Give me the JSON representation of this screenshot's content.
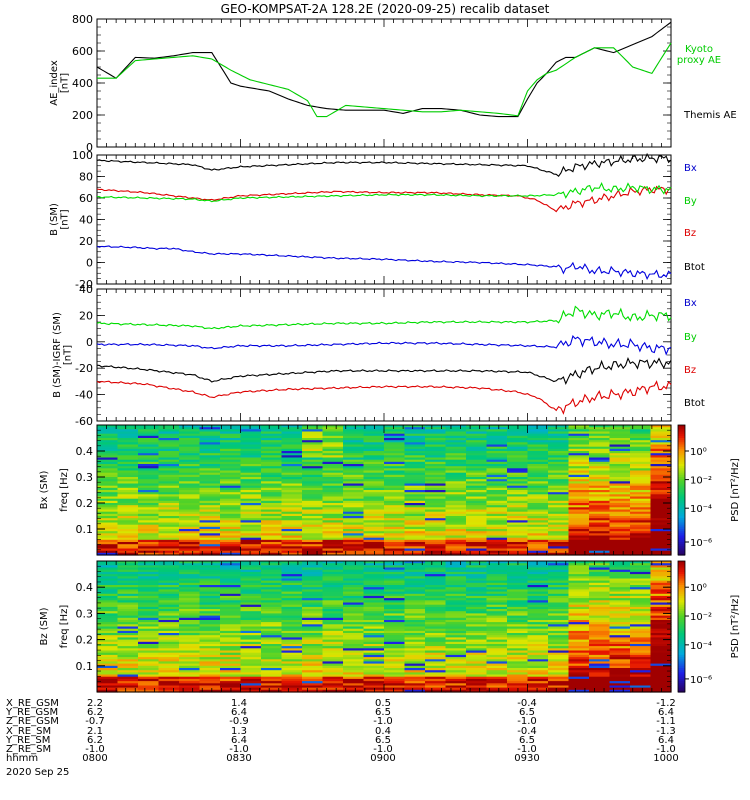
{
  "title": "GEO-KOMPSAT-2A 128.2E (2020-09-25) recalib dataset",
  "date_footer": "2020 Sep 25",
  "colors": {
    "black": "#000000",
    "green": "#00dd00",
    "red": "#dd0000",
    "blue": "#0000dd",
    "kyoto": "#00cc00"
  },
  "panels": {
    "ae": {
      "ylabel": "AE_index\n[nT]",
      "legend": [
        {
          "label": "Kyoto\nproxy AE",
          "color": "#00cc00"
        },
        {
          "label": "Themis AE",
          "color": "#000000"
        }
      ]
    },
    "bsm": {
      "ylabel": "B (SM)\n[nT]",
      "legend": [
        {
          "label": "Bx",
          "color": "#0000cc"
        },
        {
          "label": "By",
          "color": "#00cc00"
        },
        {
          "label": "Bz",
          "color": "#dd0000"
        },
        {
          "label": "Btot",
          "color": "#000000"
        }
      ]
    },
    "bigrf": {
      "ylabel": "B (SM)-IGRF (SM)\n[nT]",
      "legend": [
        {
          "label": "Bx",
          "color": "#0000cc"
        },
        {
          "label": "By",
          "color": "#00cc00"
        },
        {
          "label": "Bz",
          "color": "#dd0000"
        },
        {
          "label": "Btot",
          "color": "#000000"
        }
      ]
    },
    "spec_bx": {
      "ylabel1": "Bx (SM)",
      "ylabel2": "freq [Hz]",
      "cbar_label": "PSD [nT²/Hz]"
    },
    "spec_bz": {
      "ylabel1": "Bz (SM)",
      "ylabel2": "freq [Hz]",
      "cbar_label": "PSD [nT²/Hz]"
    }
  },
  "chart_data": [
    {
      "type": "line",
      "panel": "AE index",
      "xlim": [
        0,
        120
      ],
      "ylim": [
        0,
        800
      ],
      "yticks": [
        0,
        200,
        400,
        600,
        800
      ],
      "series": [
        {
          "name": "Themis AE",
          "color": "#000000",
          "x": [
            0,
            4,
            8,
            12,
            16,
            20,
            24,
            28,
            30,
            32,
            36,
            40,
            44,
            48,
            52,
            56,
            60,
            64,
            68,
            72,
            76,
            80,
            84,
            88,
            90,
            92,
            94,
            96,
            98,
            100,
            104,
            108,
            112,
            116,
            120
          ],
          "y": [
            500,
            430,
            560,
            555,
            570,
            590,
            590,
            400,
            380,
            370,
            350,
            300,
            260,
            240,
            230,
            230,
            230,
            210,
            240,
            240,
            230,
            200,
            190,
            190,
            300,
            400,
            460,
            530,
            560,
            560,
            620,
            590,
            640,
            690,
            780
          ]
        },
        {
          "name": "Kyoto proxy AE",
          "color": "#00cc00",
          "x": [
            0,
            4,
            8,
            12,
            16,
            20,
            24,
            28,
            32,
            36,
            40,
            44,
            46,
            48,
            52,
            56,
            60,
            64,
            68,
            72,
            76,
            80,
            84,
            88,
            90,
            92,
            94,
            96,
            100,
            104,
            108,
            112,
            116,
            120
          ],
          "y": [
            430,
            430,
            540,
            550,
            560,
            570,
            550,
            480,
            420,
            390,
            360,
            290,
            190,
            190,
            260,
            250,
            240,
            230,
            220,
            220,
            230,
            220,
            210,
            195,
            350,
            420,
            460,
            480,
            560,
            620,
            620,
            500,
            460,
            650
          ]
        }
      ]
    },
    {
      "type": "line",
      "panel": "B (SM)",
      "xlim": [
        0,
        120
      ],
      "ylim": [
        -20,
        100
      ],
      "yticks": [
        -20,
        0,
        20,
        40,
        60,
        80,
        100
      ],
      "series": [
        {
          "name": "Btot",
          "color": "#000000",
          "x": [
            0,
            10,
            20,
            24,
            30,
            40,
            50,
            60,
            70,
            80,
            90,
            96,
            100,
            104,
            108,
            112,
            116,
            120
          ],
          "y": [
            95,
            93,
            91,
            86,
            89,
            91,
            93,
            93,
            92,
            91,
            90,
            82,
            89,
            92,
            94,
            96,
            97,
            97
          ]
        },
        {
          "name": "Bz",
          "color": "#dd0000",
          "x": [
            0,
            10,
            20,
            24,
            30,
            40,
            50,
            60,
            70,
            80,
            88,
            92,
            96,
            100,
            104,
            108,
            112,
            116,
            120
          ],
          "y": [
            68,
            65,
            60,
            58,
            62,
            64,
            66,
            65,
            65,
            63,
            62,
            58,
            48,
            55,
            58,
            62,
            66,
            68,
            68
          ]
        },
        {
          "name": "By",
          "color": "#00dd00",
          "x": [
            0,
            10,
            20,
            24,
            30,
            40,
            50,
            60,
            70,
            80,
            90,
            96,
            100,
            104,
            108,
            112,
            116,
            120
          ],
          "y": [
            61,
            60,
            59,
            57,
            60,
            61,
            62,
            63,
            63,
            62,
            62,
            63,
            66,
            70,
            68,
            70,
            68,
            68
          ]
        },
        {
          "name": "Bx",
          "color": "#0000dd",
          "x": [
            0,
            8,
            12,
            16,
            20,
            24,
            30,
            40,
            50,
            60,
            70,
            80,
            90,
            96,
            98,
            100,
            104,
            108,
            112,
            116,
            120
          ],
          "y": [
            15,
            14,
            13,
            13,
            10,
            8,
            8,
            6,
            4,
            3,
            1,
            0,
            -2,
            -4,
            -6,
            -3,
            -8,
            -8,
            -10,
            -11,
            -12
          ]
        }
      ]
    },
    {
      "type": "line",
      "panel": "B (SM)-IGRF (SM)",
      "xlim": [
        0,
        120
      ],
      "ylim": [
        -60,
        40
      ],
      "yticks": [
        -60,
        -40,
        -20,
        0,
        20,
        40
      ],
      "series": [
        {
          "name": "By",
          "color": "#00dd00",
          "x": [
            0,
            10,
            20,
            24,
            30,
            40,
            50,
            60,
            70,
            80,
            90,
            96,
            100,
            104,
            108,
            112,
            116,
            120
          ],
          "y": [
            14,
            13,
            12,
            10,
            12,
            13,
            14,
            14,
            15,
            15,
            15,
            16,
            24,
            20,
            22,
            18,
            20,
            20
          ]
        },
        {
          "name": "Bx",
          "color": "#0000dd",
          "x": [
            0,
            10,
            20,
            24,
            30,
            40,
            50,
            60,
            70,
            80,
            90,
            96,
            100,
            104,
            108,
            112,
            116,
            120
          ],
          "y": [
            -2,
            -2,
            -3,
            -5,
            -3,
            -3,
            -2,
            -1,
            -1,
            -2,
            -3,
            -4,
            2,
            0,
            -2,
            -2,
            -5,
            -5
          ]
        },
        {
          "name": "Btot",
          "color": "#000000",
          "x": [
            0,
            10,
            20,
            24,
            30,
            40,
            50,
            60,
            70,
            80,
            90,
            96,
            100,
            104,
            108,
            112,
            116,
            120
          ],
          "y": [
            -18,
            -21,
            -25,
            -30,
            -26,
            -24,
            -22,
            -22,
            -22,
            -22,
            -23,
            -30,
            -25,
            -20,
            -18,
            -16,
            -16,
            -16
          ]
        },
        {
          "name": "Bz",
          "color": "#dd0000",
          "x": [
            0,
            10,
            20,
            24,
            30,
            40,
            50,
            60,
            70,
            80,
            88,
            92,
            96,
            100,
            104,
            108,
            112,
            116,
            120
          ],
          "y": [
            -30,
            -32,
            -38,
            -42,
            -38,
            -36,
            -35,
            -34,
            -34,
            -35,
            -38,
            -42,
            -52,
            -46,
            -42,
            -40,
            -38,
            -34,
            -34
          ]
        }
      ]
    },
    {
      "type": "heatmap",
      "panel": "Bx (SM) spectrogram",
      "ylim": [
        0,
        0.5
      ],
      "yticks": [
        0.1,
        0.2,
        0.3,
        0.4
      ],
      "colorbar_ticks": [
        "10⁰",
        "10⁻²",
        "10⁻⁴",
        "10⁻⁶"
      ]
    },
    {
      "type": "heatmap",
      "panel": "Bz (SM) spectrogram",
      "ylim": [
        0,
        0.5
      ],
      "yticks": [
        0.1,
        0.2,
        0.3,
        0.4
      ],
      "colorbar_ticks": [
        "10⁰",
        "10⁻²",
        "10⁻⁴",
        "10⁻⁶"
      ]
    }
  ],
  "ephemeris": {
    "rows": [
      {
        "label": "X_RE_GSM",
        "values": [
          "2.2",
          "1.4",
          "0.5",
          "-0.4",
          "-1.2"
        ]
      },
      {
        "label": "Y_RE_GSM",
        "values": [
          "6.2",
          "6.4",
          "6.5",
          "6.5",
          "6.4"
        ]
      },
      {
        "label": "Z_RE_GSM",
        "values": [
          "-0.7",
          "-0.9",
          "-1.0",
          "-1.0",
          "-1.1"
        ]
      },
      {
        "label": "X_RE_SM",
        "values": [
          "2.1",
          "1.3",
          "0.4",
          "-0.4",
          "-1.3"
        ]
      },
      {
        "label": "Y_RE_SM",
        "values": [
          "6.2",
          "6.4",
          "6.5",
          "6.5",
          "6.4"
        ]
      },
      {
        "label": "Z_RE_SM",
        "values": [
          "-1.0",
          "-1.0",
          "-1.0",
          "-1.0",
          "-1.0"
        ]
      },
      {
        "label": "hhmm",
        "values": [
          "0800",
          "0830",
          "0900",
          "0930",
          "1000"
        ]
      }
    ]
  }
}
